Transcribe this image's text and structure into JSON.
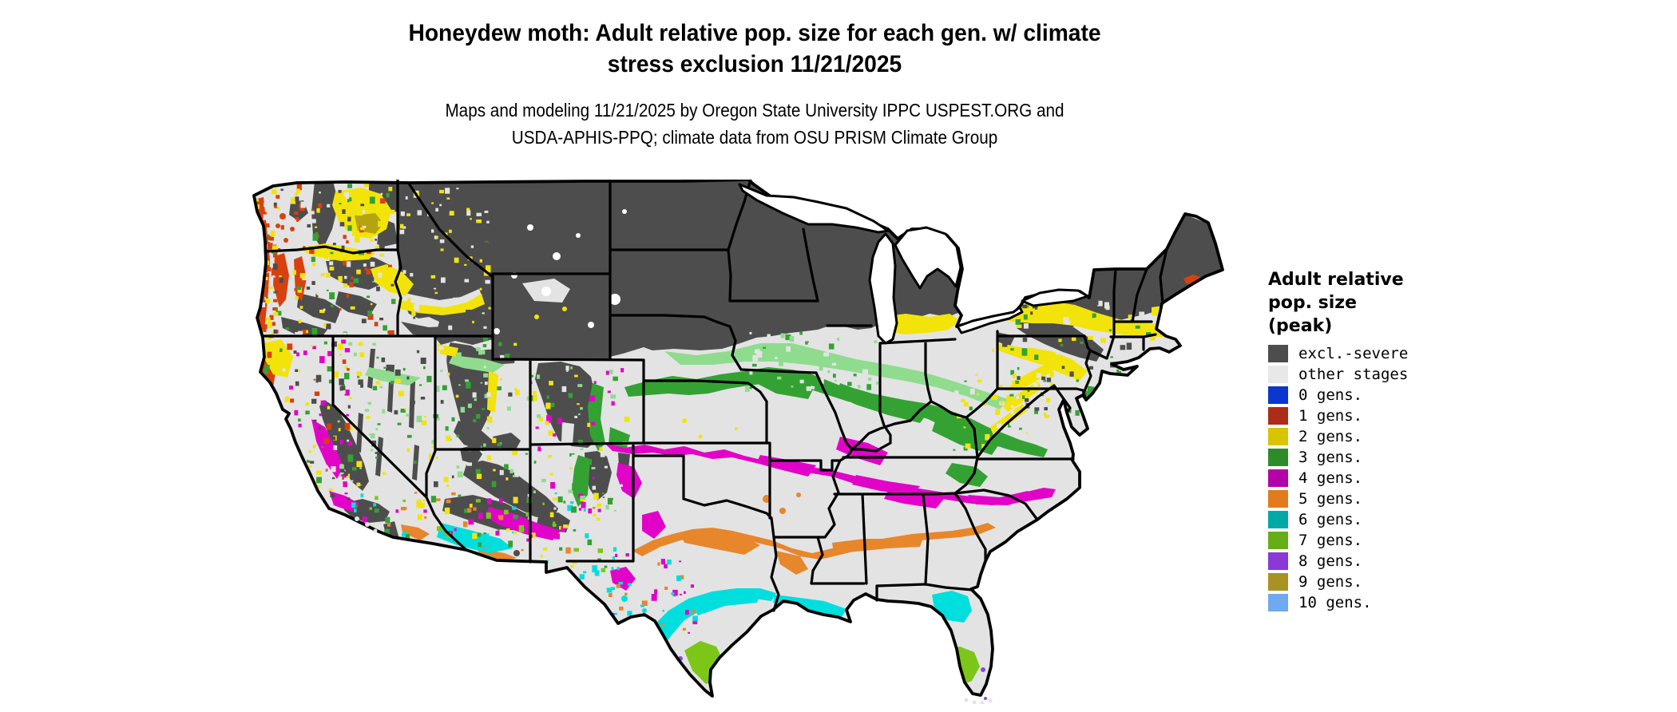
{
  "header": {
    "title_line1": "Honeydew moth: Adult relative pop. size for each gen. w/ climate",
    "title_line2": "stress exclusion 11/21/2025",
    "subtitle_line1": "Maps and modeling 11/21/2025 by Oregon State University IPPC USPEST.ORG and",
    "subtitle_line2": "USDA-APHIS-PPQ; climate data from OSU PRISM Climate Group"
  },
  "legend": {
    "title_lines": [
      "Adult relative",
      "pop. size",
      "(peak)"
    ],
    "items": [
      {
        "label": "excl.-severe",
        "color": "#4d4d4d"
      },
      {
        "label": "other stages",
        "color": "#e8e8e8"
      },
      {
        "label": "0 gens.",
        "color": "#0b36cf"
      },
      {
        "label": "1 gens.",
        "color": "#ac2c17"
      },
      {
        "label": "2 gens.",
        "color": "#d8c400"
      },
      {
        "label": "3 gens.",
        "color": "#2e8b2a"
      },
      {
        "label": "4 gens.",
        "color": "#b303a8"
      },
      {
        "label": "5 gens.",
        "color": "#e07c1d"
      },
      {
        "label": "6 gens.",
        "color": "#00a8a8"
      },
      {
        "label": "7 gens.",
        "color": "#67ad18"
      },
      {
        "label": "8 gens.",
        "color": "#8a38d8"
      },
      {
        "label": "9 gens.",
        "color": "#a89224"
      },
      {
        "label": "10 gens.",
        "color": "#6fa9ef"
      }
    ]
  },
  "map": {
    "palette": {
      "light": "#e3e3e3",
      "dark": "#4d4d4d",
      "white": "#ffffff",
      "red": "#d8400f",
      "yellow": "#f2e40a",
      "olive": "#b5a410",
      "green": "#33a233",
      "green_light": "#8fdc8f",
      "magenta": "#e203c8",
      "orange": "#e8862b",
      "cyan": "#00dede",
      "lime": "#7cc618",
      "purple": "#8a46e0",
      "border": "#000000"
    },
    "regions_summary": [
      {
        "class": "excl.-severe",
        "areas": "Northern tier: MT, ND, SD, MN, WI, MI, WY, most of ID, high country of UT/CO/NM/AZ, Sierra Nevada, Adirondacks and northern New England"
      },
      {
        "class": "other stages",
        "areas": "Central Great Plains, Ohio Valley, lower Midwest, coastal plains and interior valleys"
      },
      {
        "class": "1 gens.",
        "areas": "Pacific Northwest coast ranges, Puget/Willamette lowland fringes, mid-coast Maine specks"
      },
      {
        "class": "2 gens.",
        "areas": "Central Washington, Snake River plain fringe, basin ranges, southern Michigan, upstate New York, Pennsylvania ridges, southern New England"
      },
      {
        "class": "3 gens.",
        "areas": "Band from Nebraska/Kansas through Iowa/Missouri, Illinois, Indiana, Ohio, Kentucky, West Virginia, Virginia; eastern Colorado and New Mexico mountain fringes"
      },
      {
        "class": "4 gens.",
        "areas": "Band from southern Kansas and Oklahoma through Arkansas, Tennessee, northern Mississippi/Alabama/Georgia to the Carolinas; Texas panhandle, southern Rockies, California foothills"
      },
      {
        "class": "5 gens.",
        "areas": "Central Texas through southeast Oklahoma, Louisiana, central Mississippi/Alabama/Georgia toward the South Carolina coast"
      },
      {
        "class": "6 gens.",
        "areas": "South-central Texas and Gulf Coast, coastal Louisiana, north-central Florida, low deserts of Arizona and southern California"
      },
      {
        "class": "7 gens.",
        "areas": "Deep south Texas, south-central Florida, Yuma area"
      },
      {
        "class": "8 gens.",
        "areas": "Rio Grande valley tip of Texas and Miami / Florida Keys specks"
      }
    ]
  }
}
